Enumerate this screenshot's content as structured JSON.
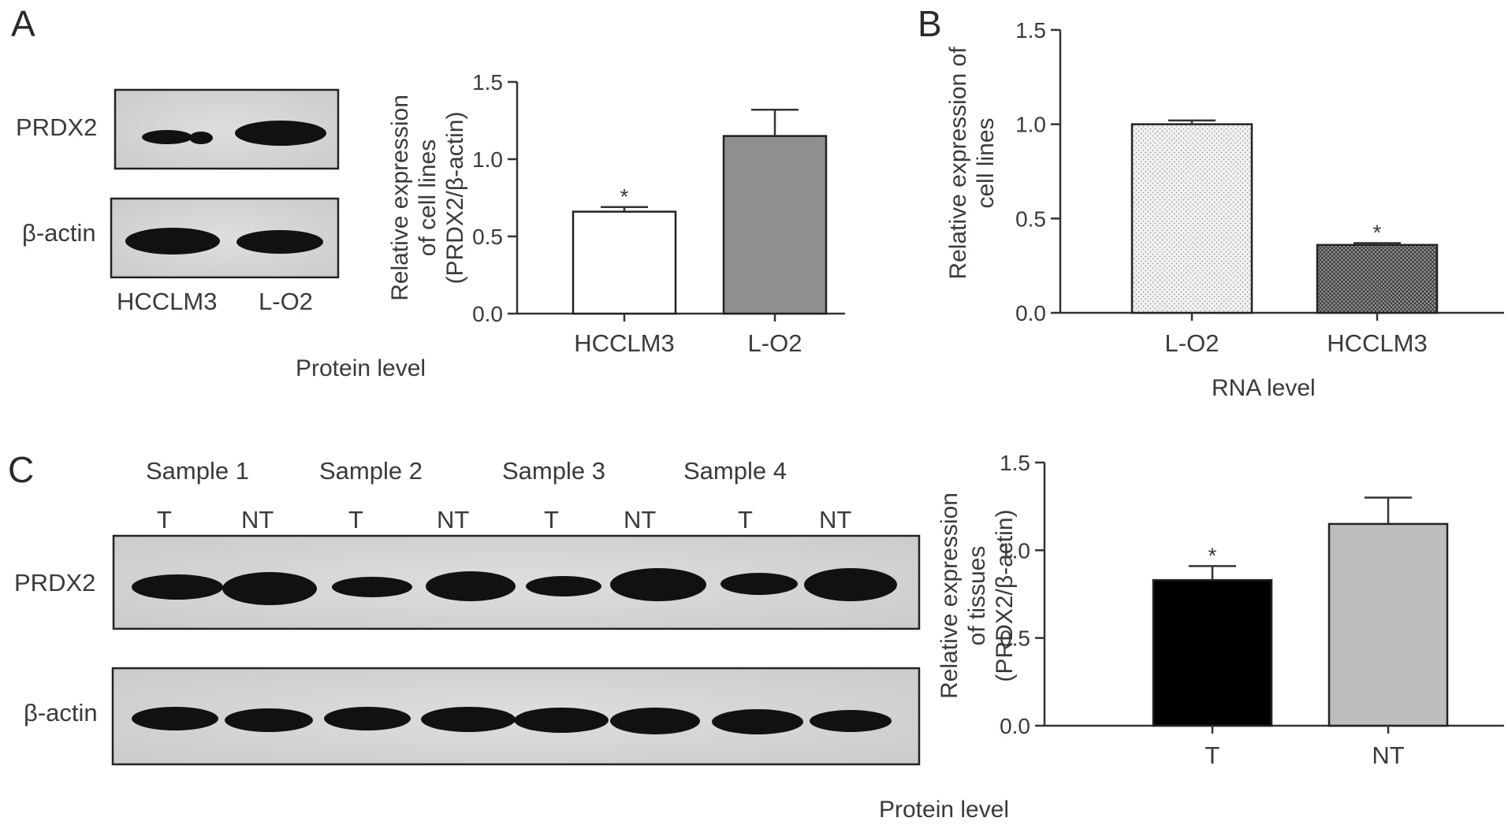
{
  "panels": {
    "A": {
      "letter": "A",
      "blot": {
        "row_labels": [
          "PRDX2",
          "β-actin"
        ],
        "lane_labels": [
          "HCCLM3",
          "L-O2"
        ],
        "caption": "Protein level"
      }
    },
    "B": {
      "letter": "B",
      "caption": "RNA level"
    },
    "C": {
      "letter": "C",
      "blot": {
        "sample_labels": [
          "Sample 1",
          "Sample 2",
          "Sample 3",
          "Sample 4"
        ],
        "lane_labels": [
          "T",
          "NT",
          "T",
          "NT",
          "T",
          "NT",
          "T",
          "NT"
        ],
        "row_labels": [
          "PRDX2",
          "β-actin"
        ]
      },
      "caption": "Protein level"
    }
  },
  "chart_data": [
    {
      "panel": "A",
      "type": "bar",
      "categories": [
        "HCCLM3",
        "L-O2"
      ],
      "values": [
        0.66,
        1.15
      ],
      "errors": [
        0.03,
        0.17
      ],
      "significance": [
        "*",
        ""
      ],
      "bar_colors": [
        "#ffffff",
        "#8f8f8f"
      ],
      "ylabel_lines": [
        "Relative expression",
        "of cell lines",
        "(PRDX2/β-actin)"
      ],
      "ylim": [
        0,
        1.5
      ],
      "yticks": [
        "0.0",
        "0.5",
        "1.0",
        "1.5"
      ]
    },
    {
      "panel": "B",
      "type": "bar",
      "categories": [
        "L-O2",
        "HCCLM3"
      ],
      "values": [
        1.0,
        0.36
      ],
      "errors": [
        0.02,
        0.01
      ],
      "significance": [
        "",
        "*"
      ],
      "bar_patterns": [
        "light-dots",
        "dense-crosshatch"
      ],
      "ylabel_lines": [
        "Relative expression of",
        "cell lines"
      ],
      "ylim": [
        0,
        1.5
      ],
      "yticks": [
        "0.0",
        "0.5",
        "1.0",
        "1.5"
      ]
    },
    {
      "panel": "C",
      "type": "bar",
      "categories": [
        "T",
        "NT"
      ],
      "values": [
        0.83,
        1.15
      ],
      "errors": [
        0.08,
        0.15
      ],
      "significance": [
        "*",
        ""
      ],
      "bar_colors": [
        "#000000",
        "#bdbdbd"
      ],
      "ylabel_lines": [
        "Relative expression",
        "of tissues",
        "(PRDX2/β-actin)"
      ],
      "ylim": [
        0,
        1.5
      ],
      "yticks": [
        "0.0",
        "0.5",
        "1.0",
        "1.5"
      ]
    }
  ]
}
